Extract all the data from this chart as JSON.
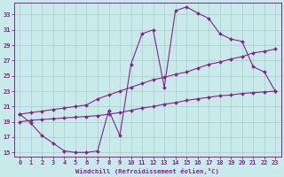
{
  "title": "",
  "xlabel": "Windchill (Refroidissement éolien,°C)",
  "ylabel": "",
  "bg_color": "#c8eaea",
  "grid_color": "#b0d0d0",
  "line_color": "#882288",
  "xlim": [
    -0.5,
    23.5
  ],
  "ylim": [
    14.5,
    34.5
  ],
  "xticks": [
    0,
    1,
    2,
    3,
    4,
    5,
    6,
    7,
    8,
    9,
    10,
    11,
    12,
    13,
    14,
    15,
    16,
    17,
    18,
    19,
    20,
    21,
    22,
    23
  ],
  "yticks": [
    15,
    17,
    19,
    21,
    23,
    25,
    27,
    29,
    31,
    33
  ],
  "lines": [
    {
      "x": [
        0,
        1,
        2,
        3,
        4,
        5,
        6,
        7,
        8,
        9,
        10,
        11,
        12,
        13,
        14,
        15,
        16,
        17,
        18,
        19,
        20,
        21,
        22,
        23
      ],
      "y": [
        20.0,
        18.8,
        17.2,
        16.2,
        15.2,
        15.0,
        15.0,
        15.2,
        20.5,
        17.2,
        26.5,
        30.5,
        31.0,
        23.5,
        33.5,
        34.0,
        33.2,
        32.5,
        30.5,
        29.8,
        29.5,
        26.2,
        25.5,
        23.0
      ]
    },
    {
      "x": [
        0,
        1,
        2,
        3,
        4,
        5,
        6,
        7,
        8,
        9,
        10,
        11,
        12,
        13,
        14,
        15,
        16,
        17,
        18,
        19,
        20,
        21,
        22,
        23
      ],
      "y": [
        20.0,
        20.2,
        20.4,
        20.6,
        20.8,
        21.0,
        21.2,
        22.0,
        22.5,
        23.0,
        23.5,
        24.0,
        24.5,
        24.8,
        25.2,
        25.5,
        26.0,
        26.5,
        26.8,
        27.2,
        27.5,
        28.0,
        28.2,
        28.5
      ]
    },
    {
      "x": [
        0,
        1,
        2,
        3,
        4,
        5,
        6,
        7,
        8,
        9,
        10,
        11,
        12,
        13,
        14,
        15,
        16,
        17,
        18,
        19,
        20,
        21,
        22,
        23
      ],
      "y": [
        19.0,
        19.2,
        19.3,
        19.4,
        19.5,
        19.6,
        19.7,
        19.8,
        20.0,
        20.2,
        20.5,
        20.8,
        21.0,
        21.3,
        21.5,
        21.8,
        22.0,
        22.2,
        22.4,
        22.5,
        22.7,
        22.8,
        22.9,
        23.0
      ]
    }
  ]
}
